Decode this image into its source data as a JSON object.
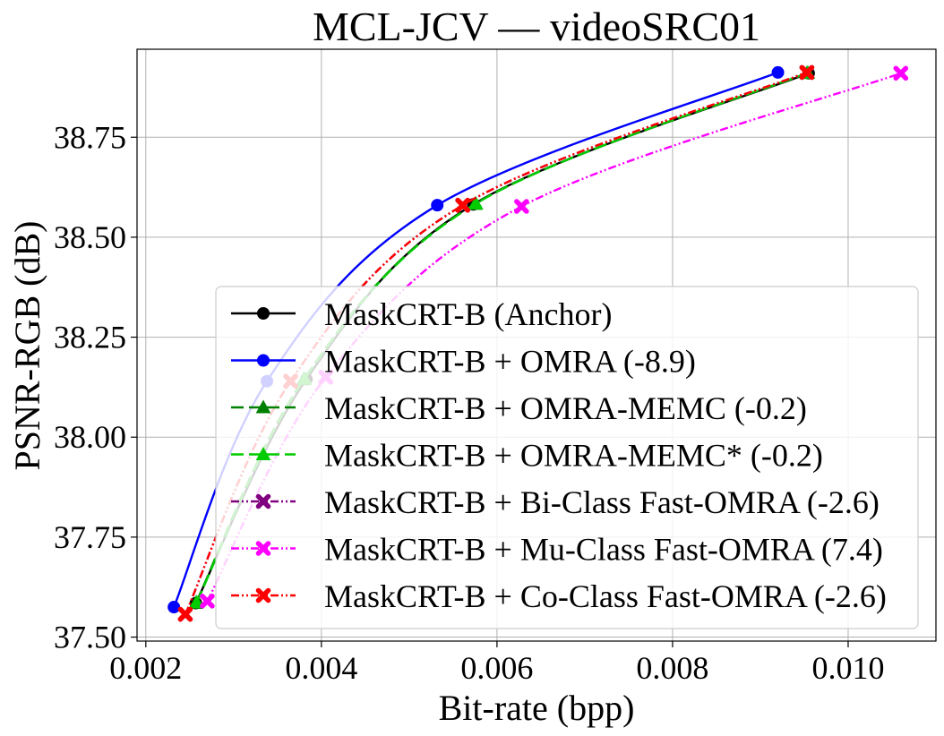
{
  "chart_data": {
    "type": "line",
    "title": "MCL-JCV — videoSRC01",
    "xlabel": "Bit-rate (bpp)",
    "ylabel": "PSNR-RGB (dB)",
    "xlim": [
      0.0019,
      0.011
    ],
    "ylim": [
      37.49,
      38.97
    ],
    "grid": true,
    "xticks": [
      0.002,
      0.004,
      0.006,
      0.008,
      0.01
    ],
    "xtick_labels": [
      "0.002",
      "0.004",
      "0.006",
      "0.008",
      "0.010"
    ],
    "yticks": [
      37.5,
      37.75,
      38.0,
      38.25,
      38.5,
      38.75
    ],
    "ytick_labels": [
      "37.50",
      "37.75",
      "38.00",
      "38.25",
      "38.50",
      "38.75"
    ],
    "legend_position": "lower-right",
    "series": [
      {
        "name": "MaskCRT-B (Anchor)",
        "color": "#000000",
        "marker": "circle",
        "dash": "solid",
        "x": [
          0.00257,
          0.00383,
          0.00573,
          0.00955
        ],
        "y": [
          37.585,
          38.145,
          38.582,
          38.91
        ]
      },
      {
        "name": "MaskCRT-B + OMRA (-8.9)",
        "color": "#0000ff",
        "marker": "circle",
        "dash": "solid",
        "x": [
          0.00232,
          0.00338,
          0.00532,
          0.0092
        ],
        "y": [
          37.575,
          38.14,
          38.58,
          38.912
        ]
      },
      {
        "name": "MaskCRT-B + OMRA-MEMC (-0.2)",
        "color": "#008000",
        "marker": "triangle",
        "dash": "dashed",
        "x": [
          0.00257,
          0.0038,
          0.00575,
          0.00953
        ],
        "y": [
          37.585,
          38.145,
          38.583,
          38.91
        ]
      },
      {
        "name": "MaskCRT-B + OMRA-MEMC* (-0.2)",
        "color": "#00cc00",
        "marker": "triangle",
        "dash": "dashed",
        "x": [
          0.00258,
          0.00381,
          0.00576,
          0.00954
        ],
        "y": [
          37.587,
          38.146,
          38.584,
          38.911
        ]
      },
      {
        "name": "MaskCRT-B + Bi-Class Fast-OMRA (-2.6)",
        "color": "#800080",
        "marker": "x",
        "dash": "dashdotdot",
        "x": [
          0.00245,
          0.00365,
          0.00561,
          0.00953
        ],
        "y": [
          37.557,
          38.14,
          38.58,
          38.912
        ]
      },
      {
        "name": "MaskCRT-B + Mu-Class Fast-OMRA (7.4)",
        "color": "#ff00ff",
        "marker": "x",
        "dash": "dashdotdot",
        "x": [
          0.0027,
          0.00405,
          0.00628,
          0.0106
        ],
        "y": [
          37.59,
          38.15,
          38.577,
          38.91
        ]
      },
      {
        "name": "MaskCRT-B + Co-Class Fast-OMRA (-2.6)",
        "color": "#ff0000",
        "marker": "x",
        "dash": "dashdotdot",
        "x": [
          0.00245,
          0.00365,
          0.00561,
          0.00953
        ],
        "y": [
          37.557,
          38.14,
          38.58,
          38.912
        ]
      }
    ]
  }
}
